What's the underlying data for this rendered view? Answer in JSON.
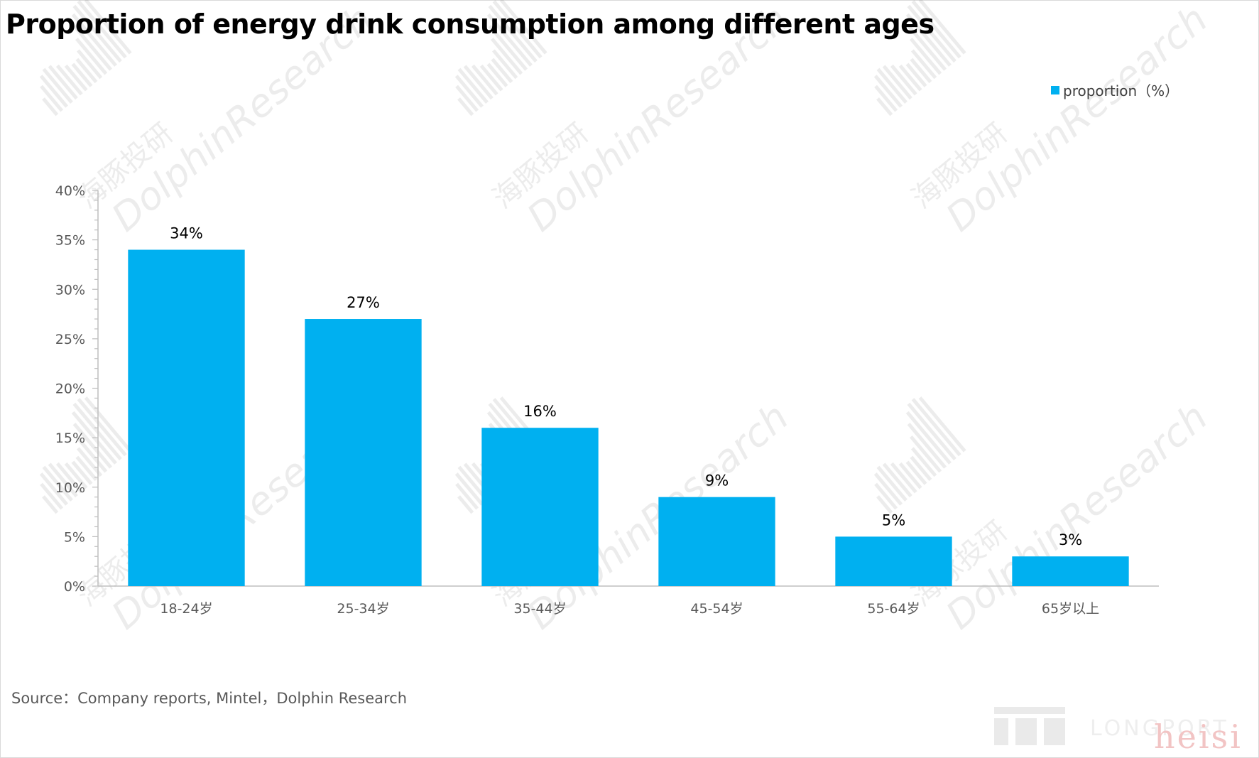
{
  "title": "Proportion of energy drink consumption among different ages",
  "legend": {
    "label": "proportion（%）"
  },
  "source": "Source：Company reports, Mintel，Dolphin Research",
  "watermark": {
    "cn": "海豚投研",
    "en": "DolphinResearch",
    "brand": "LONGPORT",
    "corner": "heisi"
  },
  "colors": {
    "bar": "#00b0f0",
    "axis": "#bfbfbf",
    "tick_text": "#595959",
    "label_text": "#000000"
  },
  "chart_data": {
    "type": "bar",
    "title": "Proportion of energy drink consumption among different ages",
    "categories": [
      "18-24岁",
      "25-34岁",
      "35-44岁",
      "45-54岁",
      "55-64岁",
      "65岁以上"
    ],
    "series": [
      {
        "name": "proportion（%）",
        "values": [
          34,
          27,
          16,
          9,
          5,
          3
        ]
      }
    ],
    "data_labels": [
      "34%",
      "27%",
      "16%",
      "9%",
      "5%",
      "3%"
    ],
    "ylim": [
      0,
      40
    ],
    "yticks": [
      0,
      5,
      10,
      15,
      20,
      25,
      30,
      35,
      40
    ],
    "ytick_labels": [
      "0%",
      "5%",
      "10%",
      "15%",
      "20%",
      "25%",
      "30%",
      "35%",
      "40%"
    ],
    "xlabel": "",
    "ylabel": "",
    "grid": false,
    "legend_position": "top-right"
  }
}
